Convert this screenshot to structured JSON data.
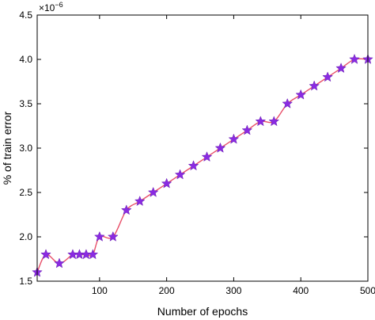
{
  "chart_data": {
    "type": "line",
    "title": "",
    "xlabel": "Number of epochs",
    "ylabel": "% of train error",
    "y_multiplier_label": "×10",
    "y_multiplier_exponent": "−6",
    "xlim": [
      7,
      500
    ],
    "ylim": [
      1.5,
      4.5
    ],
    "x_ticks": [
      100,
      200,
      300,
      400,
      500
    ],
    "y_ticks": [
      1.5,
      2.0,
      2.5,
      3.0,
      3.5,
      4.0,
      4.5
    ],
    "x_tick_labels": [
      "100",
      "200",
      "300",
      "400",
      "500"
    ],
    "y_tick_labels": [
      "1.5",
      "2.0",
      "2.5",
      "3.0",
      "3.5",
      "4.0",
      "4.5"
    ],
    "grid": false,
    "line_color": "#e8506a",
    "marker_color": "#8a2be2",
    "marker": "star",
    "series": [
      {
        "x": [
          7,
          20,
          40,
          60,
          70,
          80,
          90,
          100,
          120,
          140,
          160,
          180,
          200,
          220,
          240,
          260,
          280,
          300,
          320,
          340,
          360,
          380,
          400,
          420,
          440,
          460,
          480,
          500
        ],
        "values": [
          1.6,
          1.8,
          1.7,
          1.8,
          1.8,
          1.8,
          1.8,
          2.0,
          2.0,
          2.3,
          2.4,
          2.5,
          2.6,
          2.7,
          2.8,
          2.9,
          3.0,
          3.1,
          3.2,
          3.3,
          3.3,
          3.5,
          3.6,
          3.7,
          3.8,
          3.9,
          4.0,
          4.0
        ]
      }
    ]
  }
}
